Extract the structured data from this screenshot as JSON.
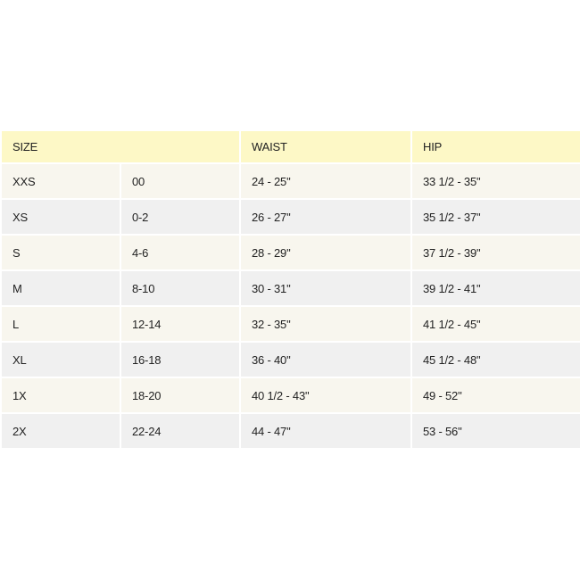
{
  "header": {
    "size": "SIZE",
    "waist": "WAIST",
    "hip": "HIP"
  },
  "colors": {
    "header_bg": "#fdf8c6",
    "row_odd_bg": "#f8f6ee",
    "row_even_bg": "#f0f0f0"
  },
  "rows": [
    {
      "size": "XXS",
      "number": "00",
      "waist": "24 - 25\"",
      "hip": "33 1/2 - 35\""
    },
    {
      "size": "XS",
      "number": "0-2",
      "waist": "26 - 27\"",
      "hip": "35 1/2 - 37\""
    },
    {
      "size": "S",
      "number": "4-6",
      "waist": "28 - 29\"",
      "hip": "37 1/2 - 39\""
    },
    {
      "size": "M",
      "number": "8-10",
      "waist": "30 - 31\"",
      "hip": "39 1/2 - 41\""
    },
    {
      "size": "L",
      "number": "12-14",
      "waist": "32 - 35\"",
      "hip": "41 1/2 - 45\""
    },
    {
      "size": "XL",
      "number": "16-18",
      "waist": "36 - 40\"",
      "hip": "45 1/2 - 48\""
    },
    {
      "size": "1X",
      "number": "18-20",
      "waist": "40 1/2 - 43\"",
      "hip": "49 - 52\""
    },
    {
      "size": "2X",
      "number": "22-24",
      "waist": "44 - 47\"",
      "hip": "53 - 56\""
    }
  ]
}
